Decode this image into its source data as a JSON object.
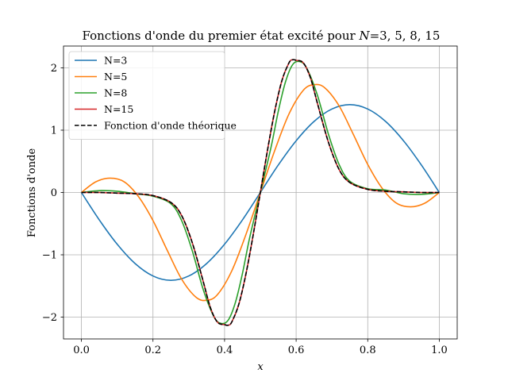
{
  "chart_data": {
    "type": "line",
    "title": "Fonctions d'onde du premier état excité pour N=3, 5, 8, 15",
    "title_prefix": "Fonctions d'onde du premier état excité pour ",
    "title_var": "N",
    "title_suffix": "=3, 5, 8, 15",
    "xlabel": "x",
    "ylabel": "Fonctions d'onde",
    "xlim": [
      -0.05,
      1.05
    ],
    "ylim": [
      -2.35,
      2.35
    ],
    "xticks": [
      "0.0",
      "0.2",
      "0.4",
      "0.6",
      "0.8",
      "1.0"
    ],
    "yticks": [
      "−2",
      "−1",
      "0",
      "1",
      "2"
    ],
    "grid": true,
    "legend_position": "top-left",
    "series": [
      {
        "name": "N=3",
        "color": "#1f77b4",
        "dashed": false,
        "x": [
          0,
          0.05,
          0.1,
          0.15,
          0.2,
          0.25,
          0.3,
          0.35,
          0.4,
          0.45,
          0.5,
          0.55,
          0.6,
          0.65,
          0.7,
          0.75,
          0.8,
          0.85,
          0.9,
          0.95,
          1.0
        ],
        "y": [
          0,
          -0.44,
          -0.83,
          -1.14,
          -1.34,
          -1.41,
          -1.34,
          -1.14,
          -0.83,
          -0.44,
          0,
          0.44,
          0.83,
          1.14,
          1.34,
          1.41,
          1.34,
          1.14,
          0.83,
          0.44,
          0
        ]
      },
      {
        "name": "N=5",
        "color": "#ff7f0e",
        "dashed": false,
        "x": [
          0,
          0.04,
          0.08,
          0.12,
          0.16,
          0.2,
          0.24,
          0.28,
          0.32,
          0.35,
          0.38,
          0.42,
          0.46,
          0.5,
          0.54,
          0.58,
          0.62,
          0.65,
          0.68,
          0.72,
          0.76,
          0.8,
          0.84,
          0.88,
          0.92,
          0.96,
          1.0
        ],
        "y": [
          0,
          0.17,
          0.23,
          0.17,
          -0.07,
          -0.45,
          -0.93,
          -1.39,
          -1.68,
          -1.73,
          -1.64,
          -1.26,
          -0.67,
          0,
          0.67,
          1.26,
          1.64,
          1.73,
          1.68,
          1.39,
          0.93,
          0.45,
          0.07,
          -0.17,
          -0.23,
          -0.17,
          0
        ]
      },
      {
        "name": "N=8",
        "color": "#2ca02c",
        "dashed": false,
        "x": [
          0,
          0.05,
          0.1,
          0.15,
          0.2,
          0.25,
          0.28,
          0.31,
          0.34,
          0.37,
          0.39,
          0.41,
          0.43,
          0.45,
          0.47,
          0.5,
          0.53,
          0.55,
          0.57,
          0.59,
          0.61,
          0.63,
          0.66,
          0.69,
          0.72,
          0.75,
          0.8,
          0.85,
          0.9,
          0.95,
          1.0
        ],
        "y": [
          0,
          0.03,
          0.02,
          -0.02,
          -0.06,
          -0.18,
          -0.45,
          -0.94,
          -1.55,
          -1.99,
          -2.1,
          -2.05,
          -1.77,
          -1.3,
          -0.73,
          0,
          0.73,
          1.3,
          1.77,
          2.05,
          2.1,
          1.99,
          1.55,
          0.94,
          0.45,
          0.18,
          0.06,
          0.04,
          -0.02,
          -0.03,
          0
        ]
      },
      {
        "name": "N=15",
        "color": "#d62728",
        "dashed": false,
        "x": [
          0,
          0.05,
          0.1,
          0.15,
          0.2,
          0.25,
          0.28,
          0.31,
          0.34,
          0.36,
          0.38,
          0.4,
          0.41,
          0.42,
          0.44,
          0.46,
          0.48,
          0.5,
          0.52,
          0.54,
          0.56,
          0.58,
          0.59,
          0.6,
          0.62,
          0.64,
          0.66,
          0.69,
          0.72,
          0.75,
          0.8,
          0.85,
          0.9,
          0.95,
          1.0
        ],
        "y": [
          0,
          0.0,
          -0.01,
          -0.02,
          -0.05,
          -0.16,
          -0.37,
          -0.81,
          -1.42,
          -1.84,
          -2.08,
          -2.12,
          -2.13,
          -2.08,
          -1.79,
          -1.3,
          -0.68,
          0,
          0.68,
          1.3,
          1.79,
          2.08,
          2.13,
          2.12,
          2.08,
          1.84,
          1.42,
          0.81,
          0.37,
          0.16,
          0.05,
          0.02,
          0.01,
          0.0,
          0
        ]
      },
      {
        "name": "Fonction d'onde théorique",
        "color": "#000000",
        "dashed": true,
        "x": [
          0,
          0.05,
          0.1,
          0.15,
          0.2,
          0.25,
          0.28,
          0.31,
          0.34,
          0.36,
          0.38,
          0.4,
          0.41,
          0.42,
          0.44,
          0.46,
          0.48,
          0.5,
          0.52,
          0.54,
          0.56,
          0.58,
          0.59,
          0.6,
          0.62,
          0.64,
          0.66,
          0.69,
          0.72,
          0.75,
          0.8,
          0.85,
          0.9,
          0.95,
          1.0
        ],
        "y": [
          0,
          0.0,
          -0.01,
          -0.02,
          -0.05,
          -0.16,
          -0.37,
          -0.81,
          -1.42,
          -1.84,
          -2.08,
          -2.12,
          -2.13,
          -2.08,
          -1.79,
          -1.3,
          -0.68,
          0,
          0.68,
          1.3,
          1.79,
          2.08,
          2.13,
          2.12,
          2.08,
          1.84,
          1.42,
          0.81,
          0.37,
          0.16,
          0.05,
          0.02,
          0.01,
          0.0,
          0
        ]
      }
    ]
  }
}
